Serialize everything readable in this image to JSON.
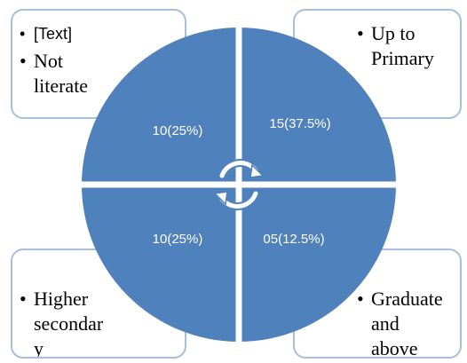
{
  "quadrants": [
    {
      "label": "10(25%)"
    },
    {
      "label": "15(37.5%)"
    },
    {
      "label": "10(25%)"
    },
    {
      "label": "05(12.5%)"
    }
  ],
  "boxes": [
    {
      "items": [
        "[Text]",
        "Not literate"
      ]
    },
    {
      "items": [
        "Up to Primary"
      ]
    },
    {
      "items": [
        "Higher secondary"
      ]
    },
    {
      "items": [
        "Graduate and above"
      ]
    }
  ]
}
